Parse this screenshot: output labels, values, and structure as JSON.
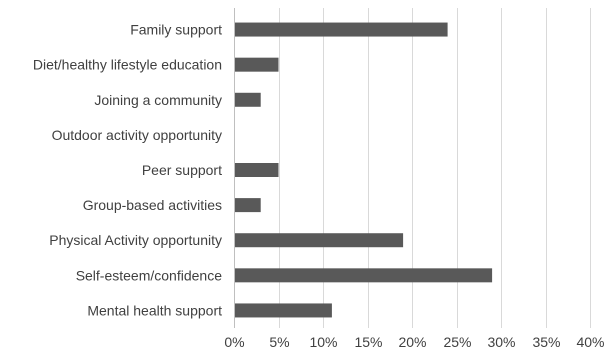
{
  "chart_data": {
    "type": "bar",
    "orientation": "horizontal",
    "categories": [
      "Family support",
      "Diet/healthy lifestyle education",
      "Joining a community",
      "Outdoor activity opportunity",
      "Peer support",
      "Group-based activities",
      "Physical Activity opportunity",
      "Self-esteem/confidence",
      "Mental health support"
    ],
    "values": [
      24,
      5,
      3,
      0,
      5,
      3,
      19,
      29,
      11
    ],
    "xlim": [
      0,
      40
    ],
    "xticks": [
      0,
      5,
      10,
      15,
      20,
      25,
      30,
      35,
      40
    ],
    "tick_labels": [
      "0%",
      "5%",
      "10%",
      "15%",
      "20%",
      "25%",
      "30%",
      "35%",
      "40%"
    ],
    "grid": true,
    "bar_color": "#595959",
    "title": "",
    "xlabel": "",
    "ylabel": ""
  }
}
